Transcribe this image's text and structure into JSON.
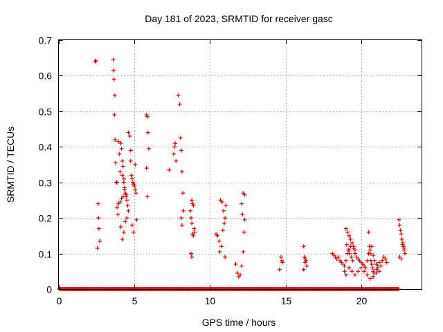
{
  "chart_data": {
    "type": "scatter",
    "title": "Day 181 of 2023, SRMTID for receiver gasc",
    "xlabel": "GPS time / hours",
    "ylabel": "SRMTID / TECUs",
    "xlim": [
      0,
      24
    ],
    "ylim": [
      0,
      0.7
    ],
    "xticks": [
      0,
      5,
      10,
      15,
      20
    ],
    "yticks": [
      0,
      0.1,
      0.2,
      0.3,
      0.4,
      0.5,
      0.6,
      0.7
    ],
    "grid": true,
    "marker": "+",
    "series_color": "#e00000",
    "baseline": {
      "y": 0,
      "x_start": 0.05,
      "x_end": 22.5
    },
    "x": [
      2.4,
      2.45,
      2.6,
      2.62,
      2.65,
      2.7,
      2.55,
      3.6,
      3.62,
      3.65,
      3.7,
      3.68,
      3.72,
      3.75,
      3.8,
      3.85,
      3.9,
      3.95,
      4.0,
      4.05,
      4.1,
      4.15,
      4.2,
      4.25,
      4.3,
      4.35,
      4.4,
      4.45,
      4.5,
      4.55,
      4.6,
      4.1,
      4.2,
      4.3,
      4.4,
      4.5,
      4.2,
      4.3,
      4.35,
      4.45,
      4.25,
      4.15,
      4.05,
      3.95,
      3.85,
      4.6,
      4.7,
      4.75,
      4.8,
      4.85,
      4.9,
      4.95,
      5.0,
      5.05,
      5.1,
      5.15,
      4.85,
      4.95,
      5.05,
      4.75,
      5.8,
      5.85,
      5.9,
      5.95,
      5.8,
      5.85,
      7.3,
      7.6,
      7.7,
      7.65,
      7.75,
      7.9,
      8.0,
      8.05,
      8.1,
      8.15,
      8.2,
      8.25,
      8.1,
      8.15,
      8.8,
      8.85,
      8.9,
      8.7,
      8.75,
      8.8,
      8.95,
      9.0,
      8.85,
      8.9,
      8.75,
      8.8,
      10.4,
      10.5,
      10.6,
      10.7,
      10.8,
      10.9,
      11.0,
      10.95,
      10.85,
      10.75,
      10.65,
      11.0,
      11.05,
      11.7,
      11.8,
      11.9,
      12.0,
      12.1,
      12.2,
      12.25,
      12.3,
      12.15,
      12.1,
      12.2,
      12.3,
      14.6,
      14.7,
      14.75,
      14.8,
      16.2,
      16.25,
      16.3,
      16.35,
      16.4,
      16.2,
      16.3,
      18.1,
      18.2,
      18.3,
      18.4,
      18.5,
      18.6,
      18.7,
      18.8,
      18.9,
      19.0,
      19.1,
      19.2,
      19.3,
      19.4,
      19.5,
      19.6,
      19.7,
      19.8,
      19.9,
      20.0,
      20.1,
      20.2,
      20.3,
      20.4,
      20.5,
      20.6,
      20.7,
      20.8,
      20.9,
      21.0,
      21.1,
      21.2,
      21.3,
      21.4,
      21.5,
      21.6,
      21.7,
      19.0,
      19.1,
      19.2,
      19.3,
      19.4,
      19.5,
      19.6,
      19.05,
      19.15,
      19.25,
      19.35,
      19.45,
      18.9,
      19.0,
      19.2,
      19.4,
      19.6,
      19.8,
      20.0,
      20.2,
      20.4,
      20.6,
      20.8,
      21.0,
      20.5,
      20.55,
      20.6,
      20.65,
      20.7,
      20.75,
      20.8,
      20.85,
      21.0,
      21.1,
      21.2,
      22.5,
      22.55,
      22.6,
      22.65,
      22.7,
      22.75,
      22.8,
      22.85,
      22.9,
      22.55,
      22.65,
      22.75,
      22.85
    ],
    "y": [
      0.64,
      0.642,
      0.24,
      0.2,
      0.17,
      0.135,
      0.115,
      0.645,
      0.615,
      0.59,
      0.545,
      0.49,
      0.42,
      0.355,
      0.3,
      0.23,
      0.21,
      0.415,
      0.38,
      0.33,
      0.41,
      0.395,
      0.36,
      0.345,
      0.3,
      0.28,
      0.27,
      0.26,
      0.25,
      0.235,
      0.22,
      0.175,
      0.14,
      0.16,
      0.19,
      0.2,
      0.32,
      0.31,
      0.285,
      0.265,
      0.26,
      0.255,
      0.245,
      0.24,
      0.3,
      0.44,
      0.43,
      0.39,
      0.32,
      0.31,
      0.3,
      0.295,
      0.29,
      0.28,
      0.27,
      0.195,
      0.18,
      0.16,
      0.35,
      0.36,
      0.49,
      0.485,
      0.44,
      0.395,
      0.34,
      0.26,
      0.335,
      0.38,
      0.41,
      0.4,
      0.36,
      0.545,
      0.52,
      0.425,
      0.39,
      0.33,
      0.27,
      0.22,
      0.2,
      0.18,
      0.25,
      0.24,
      0.235,
      0.22,
      0.2,
      0.185,
      0.17,
      0.16,
      0.155,
      0.15,
      0.1,
      0.09,
      0.155,
      0.15,
      0.135,
      0.25,
      0.245,
      0.22,
      0.2,
      0.185,
      0.165,
      0.12,
      0.105,
      0.09,
      0.235,
      0.07,
      0.045,
      0.035,
      0.04,
      0.065,
      0.105,
      0.16,
      0.195,
      0.21,
      0.24,
      0.27,
      0.265,
      0.055,
      0.09,
      0.08,
      0.075,
      0.12,
      0.09,
      0.085,
      0.08,
      0.065,
      0.055,
      0.075,
      0.1,
      0.095,
      0.09,
      0.085,
      0.09,
      0.08,
      0.075,
      0.07,
      0.065,
      0.08,
      0.1,
      0.11,
      0.12,
      0.13,
      0.115,
      0.1,
      0.09,
      0.085,
      0.08,
      0.075,
      0.07,
      0.065,
      0.06,
      0.08,
      0.1,
      0.11,
      0.12,
      0.095,
      0.08,
      0.07,
      0.06,
      0.05,
      0.065,
      0.08,
      0.09,
      0.085,
      0.075,
      0.17,
      0.16,
      0.15,
      0.14,
      0.13,
      0.12,
      0.11,
      0.125,
      0.11,
      0.1,
      0.09,
      0.08,
      0.05,
      0.04,
      0.06,
      0.05,
      0.04,
      0.05,
      0.06,
      0.05,
      0.04,
      0.03,
      0.035,
      0.045,
      0.16,
      0.12,
      0.1,
      0.08,
      0.07,
      0.06,
      0.05,
      0.045,
      0.055,
      0.065,
      0.075,
      0.195,
      0.18,
      0.165,
      0.155,
      0.14,
      0.13,
      0.12,
      0.11,
      0.1,
      0.09,
      0.085,
      0.125,
      0.115
    ]
  }
}
